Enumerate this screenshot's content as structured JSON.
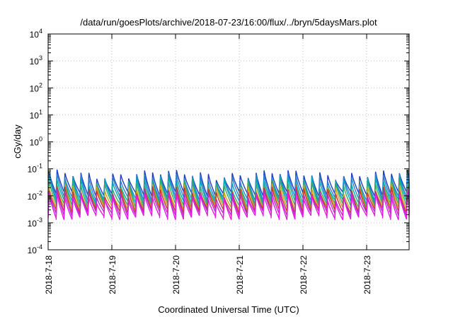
{
  "chart_data": {
    "type": "line",
    "title": "/data/run/goesPlots/archive/2018-07-23/16:00/flux/../bryn/5daysMars.plot",
    "xlabel": "Coordinated Universal Time (UTC)",
    "ylabel": "cGy/day",
    "yscale": "log",
    "ylim": [
      0.0001,
      10000
    ],
    "xlim": [
      "2018-07-18",
      "2018-07-23 16:00"
    ],
    "y_ticks": [
      {
        "base": "10",
        "exp": "-4"
      },
      {
        "base": "10",
        "exp": "-3"
      },
      {
        "base": "10",
        "exp": "-2"
      },
      {
        "base": "10",
        "exp": "-1"
      },
      {
        "base": "10",
        "exp": "0"
      },
      {
        "base": "10",
        "exp": "1"
      },
      {
        "base": "10",
        "exp": "2"
      },
      {
        "base": "10",
        "exp": "3"
      },
      {
        "base": "10",
        "exp": "4"
      }
    ],
    "x_ticks": [
      "2018-7-18",
      "2018-7-19",
      "2018-7-20",
      "2018-7-21",
      "2018-7-22",
      "2018-7-23"
    ],
    "grid": true,
    "sawtooth_period_hours": 3,
    "series": [
      {
        "color": "#1f3fbf",
        "peak": 0.065,
        "trough": 0.012
      },
      {
        "color": "#2b7fd0",
        "peak": 0.05,
        "trough": 0.008
      },
      {
        "color": "#00a7b5",
        "peak": 0.038,
        "trough": 0.006
      },
      {
        "color": "#3aa86b",
        "peak": 0.028,
        "trough": 0.0045
      },
      {
        "color": "#c9a41c",
        "peak": 0.02,
        "trough": 0.0035
      },
      {
        "color": "#cc3333",
        "peak": 0.016,
        "trough": 0.0028
      },
      {
        "color": "#b02ec9",
        "peak": 0.012,
        "trough": 0.0022
      },
      {
        "color": "#e619e6",
        "peak": 0.009,
        "trough": 0.0016
      }
    ]
  }
}
